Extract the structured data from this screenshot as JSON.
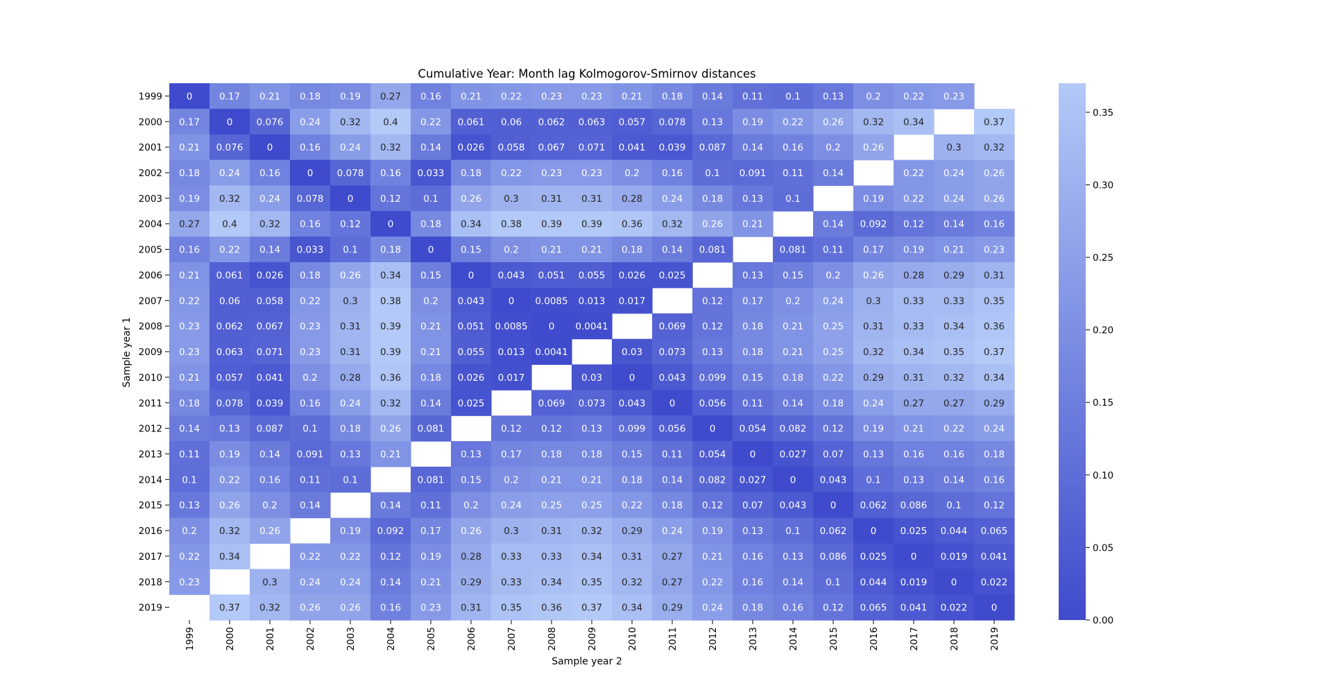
{
  "chart_data": {
    "type": "heatmap",
    "title": "Cumulative Year: Month lag Kolmogorov-Smirnov distances",
    "xlabel": "Sample year 2",
    "ylabel": "Sample year 1",
    "x_categories": [
      "1999",
      "2000",
      "2001",
      "2002",
      "2003",
      "2004",
      "2005",
      "2006",
      "2007",
      "2008",
      "2009",
      "2010",
      "2011",
      "2012",
      "2013",
      "2014",
      "2015",
      "2016",
      "2017",
      "2018",
      "2019"
    ],
    "y_categories": [
      "1999",
      "2000",
      "2001",
      "2002",
      "2003",
      "2004",
      "2005",
      "2006",
      "2007",
      "2008",
      "2009",
      "2010",
      "2011",
      "2012",
      "2013",
      "2014",
      "2015",
      "2016",
      "2017",
      "2018",
      "2019"
    ],
    "values": [
      [
        0,
        0.17,
        0.21,
        0.18,
        0.19,
        0.27,
        0.16,
        0.21,
        0.22,
        0.23,
        0.23,
        0.21,
        0.18,
        0.14,
        0.11,
        0.1,
        0.13,
        0.2,
        0.22,
        0.23,
        null
      ],
      [
        0.17,
        0,
        0.076,
        0.24,
        0.32,
        0.4,
        0.22,
        0.061,
        0.06,
        0.062,
        0.063,
        0.057,
        0.078,
        0.13,
        0.19,
        0.22,
        0.26,
        0.32,
        0.34,
        null,
        0.37
      ],
      [
        0.21,
        0.076,
        0,
        0.16,
        0.24,
        0.32,
        0.14,
        0.026,
        0.058,
        0.067,
        0.071,
        0.041,
        0.039,
        0.087,
        0.14,
        0.16,
        0.2,
        0.26,
        null,
        0.3,
        0.32
      ],
      [
        0.18,
        0.24,
        0.16,
        0,
        0.078,
        0.16,
        0.033,
        0.18,
        0.22,
        0.23,
        0.23,
        0.2,
        0.16,
        0.1,
        0.091,
        0.11,
        0.14,
        null,
        0.22,
        0.24,
        0.26
      ],
      [
        0.19,
        0.32,
        0.24,
        0.078,
        0,
        0.12,
        0.1,
        0.26,
        0.3,
        0.31,
        0.31,
        0.28,
        0.24,
        0.18,
        0.13,
        0.1,
        null,
        0.19,
        0.22,
        0.24,
        0.26
      ],
      [
        0.27,
        0.4,
        0.32,
        0.16,
        0.12,
        0,
        0.18,
        0.34,
        0.38,
        0.39,
        0.39,
        0.36,
        0.32,
        0.26,
        0.21,
        null,
        0.14,
        0.092,
        0.12,
        0.14,
        0.16
      ],
      [
        0.16,
        0.22,
        0.14,
        0.033,
        0.1,
        0.18,
        0,
        0.15,
        0.2,
        0.21,
        0.21,
        0.18,
        0.14,
        0.081,
        null,
        0.081,
        0.11,
        0.17,
        0.19,
        0.21,
        0.23
      ],
      [
        0.21,
        0.061,
        0.026,
        0.18,
        0.26,
        0.34,
        0.15,
        0,
        0.043,
        0.051,
        0.055,
        0.026,
        0.025,
        null,
        0.13,
        0.15,
        0.2,
        0.26,
        0.28,
        0.29,
        0.31
      ],
      [
        0.22,
        0.06,
        0.058,
        0.22,
        0.3,
        0.38,
        0.2,
        0.043,
        0,
        0.0085,
        0.013,
        0.017,
        null,
        0.12,
        0.17,
        0.2,
        0.24,
        0.3,
        0.33,
        0.33,
        0.35
      ],
      [
        0.23,
        0.062,
        0.067,
        0.23,
        0.31,
        0.39,
        0.21,
        0.051,
        0.0085,
        0,
        0.0041,
        null,
        0.069,
        0.12,
        0.18,
        0.21,
        0.25,
        0.31,
        0.33,
        0.34,
        0.36
      ],
      [
        0.23,
        0.063,
        0.071,
        0.23,
        0.31,
        0.39,
        0.21,
        0.055,
        0.013,
        0.0041,
        null,
        0.03,
        0.073,
        0.13,
        0.18,
        0.21,
        0.25,
        0.32,
        0.34,
        0.35,
        0.37
      ],
      [
        0.21,
        0.057,
        0.041,
        0.2,
        0.28,
        0.36,
        0.18,
        0.026,
        0.017,
        null,
        0.03,
        0,
        0.043,
        0.099,
        0.15,
        0.18,
        0.22,
        0.29,
        0.31,
        0.32,
        0.34
      ],
      [
        0.18,
        0.078,
        0.039,
        0.16,
        0.24,
        0.32,
        0.14,
        0.025,
        null,
        0.069,
        0.073,
        0.043,
        0,
        0.056,
        0.11,
        0.14,
        0.18,
        0.24,
        0.27,
        0.27,
        0.29
      ],
      [
        0.14,
        0.13,
        0.087,
        0.1,
        0.18,
        0.26,
        0.081,
        null,
        0.12,
        0.12,
        0.13,
        0.099,
        0.056,
        0,
        0.054,
        0.082,
        0.12,
        0.19,
        0.21,
        0.22,
        0.24
      ],
      [
        0.11,
        0.19,
        0.14,
        0.091,
        0.13,
        0.21,
        null,
        0.13,
        0.17,
        0.18,
        0.18,
        0.15,
        0.11,
        0.054,
        0,
        0.027,
        0.07,
        0.13,
        0.16,
        0.16,
        0.18
      ],
      [
        0.1,
        0.22,
        0.16,
        0.11,
        0.1,
        null,
        0.081,
        0.15,
        0.2,
        0.21,
        0.21,
        0.18,
        0.14,
        0.082,
        0.027,
        0,
        0.043,
        0.1,
        0.13,
        0.14,
        0.16
      ],
      [
        0.13,
        0.26,
        0.2,
        0.14,
        null,
        0.14,
        0.11,
        0.2,
        0.24,
        0.25,
        0.25,
        0.22,
        0.18,
        0.12,
        0.07,
        0.043,
        0,
        0.062,
        0.086,
        0.1,
        0.12
      ],
      [
        0.2,
        0.32,
        0.26,
        null,
        0.19,
        0.092,
        0.17,
        0.26,
        0.3,
        0.31,
        0.32,
        0.29,
        0.24,
        0.19,
        0.13,
        0.1,
        0.062,
        0,
        0.025,
        0.044,
        0.065
      ],
      [
        0.22,
        0.34,
        null,
        0.22,
        0.22,
        0.12,
        0.19,
        0.28,
        0.33,
        0.33,
        0.34,
        0.31,
        0.27,
        0.21,
        0.16,
        0.13,
        0.086,
        0.025,
        0,
        0.019,
        0.041
      ],
      [
        0.23,
        null,
        0.3,
        0.24,
        0.24,
        0.14,
        0.21,
        0.29,
        0.33,
        0.34,
        0.35,
        0.32,
        0.27,
        0.22,
        0.16,
        0.14,
        0.1,
        0.044,
        0.019,
        0,
        0.022
      ],
      [
        null,
        0.37,
        0.32,
        0.26,
        0.26,
        0.16,
        0.23,
        0.31,
        0.35,
        0.36,
        0.37,
        0.34,
        0.29,
        0.24,
        0.18,
        0.16,
        0.12,
        0.065,
        0.041,
        0.022,
        0
      ]
    ],
    "vmin": 0,
    "vmax": 0.37,
    "colorbar_ticks": [
      "0.00",
      "0.05",
      "0.10",
      "0.15",
      "0.20",
      "0.25",
      "0.30",
      "0.35"
    ],
    "color_low": "#3f4bcc",
    "color_high": "#b3c9f7",
    "grid": false,
    "annotations": true
  }
}
